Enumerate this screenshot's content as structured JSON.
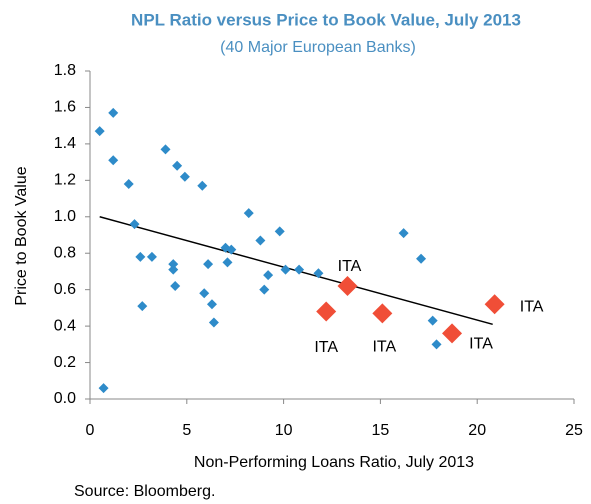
{
  "chart_data": {
    "type": "scatter",
    "title": "NPL Ratio versus Price to Book Value, July 2013",
    "subtitle": "(40 Major European Banks)",
    "x_label": "Non-Performing Loans Ratio, July 2013",
    "y_label": "Price to Book Value",
    "source": "Source: Bloomberg.",
    "xlim": [
      0,
      25
    ],
    "xticks": [
      0,
      5,
      10,
      15,
      20,
      25
    ],
    "ylim": [
      0,
      1.8
    ],
    "yticks": [
      {
        "value": 0,
        "label": "0.0"
      },
      0.2,
      0.4,
      0.6,
      0.8,
      {
        "value": 1,
        "label": "1.0"
      },
      1.2,
      1.4,
      1.6,
      1.8
    ],
    "series": [
      {
        "color": "#2e8bc9",
        "x": [
          0.5,
          1.2,
          1.2,
          2.0,
          2.3,
          2.6,
          3.2,
          2.7,
          0.7,
          3.9,
          4.5,
          4.9,
          5.8,
          4.3,
          4.3,
          4.4,
          6.1,
          5.9,
          6.3,
          6.4,
          7.0,
          7.3,
          7.1,
          8.2,
          8.8,
          9.0,
          9.2,
          9.8,
          10.1,
          10.8,
          11.8,
          16.2,
          17.1,
          17.7,
          17.9
        ],
        "values": [
          1.47,
          1.57,
          1.31,
          1.18,
          0.96,
          0.78,
          0.78,
          0.51,
          0.06,
          1.37,
          1.28,
          1.22,
          1.17,
          0.74,
          0.71,
          0.62,
          0.74,
          0.58,
          0.52,
          0.42,
          0.83,
          0.82,
          0.75,
          1.02,
          0.87,
          0.6,
          0.68,
          0.92,
          0.71,
          0.71,
          0.69,
          0.91,
          0.77,
          0.43,
          0.3
        ]
      },
      {
        "color": "#f04e37",
        "x": [
          12.2,
          13.3,
          15.1,
          18.7,
          20.9
        ],
        "values": [
          0.48,
          0.62,
          0.47,
          0.36,
          0.52
        ],
        "labels": [
          "ITA",
          "ITA",
          "ITA",
          "ITA",
          "ITA"
        ]
      }
    ],
    "trendline": {
      "x": [
        0.5,
        20.8
      ],
      "y": [
        1.0,
        0.41
      ],
      "color": "#000000"
    }
  }
}
